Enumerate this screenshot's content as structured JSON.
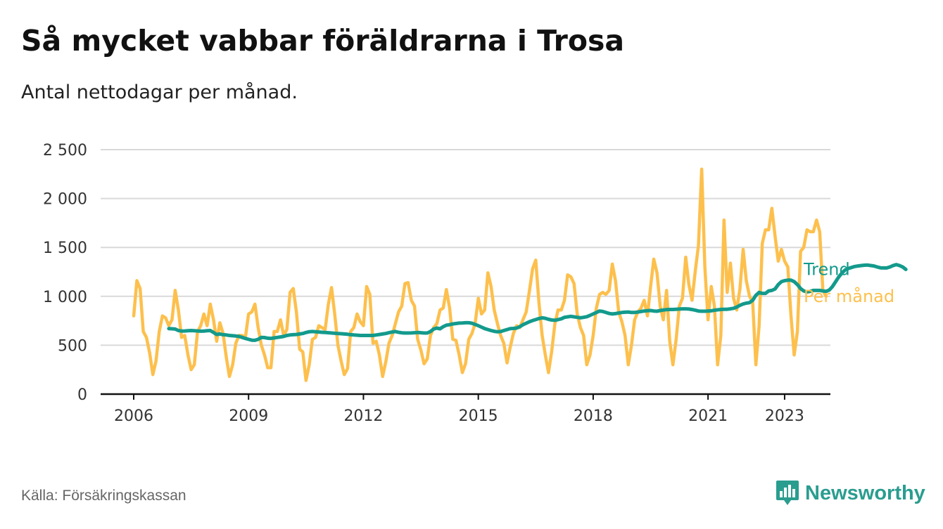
{
  "header": {
    "title": "Så mycket vabbar föräldrarna i Trosa",
    "subtitle": "Antal nettodagar per månad."
  },
  "footer": {
    "source": "Källa: Försäkringskassan",
    "brand": "Newsworthy",
    "brand_icon": "bar-chart-badge-icon"
  },
  "colors": {
    "monthly": "#fdc04d",
    "trend": "#139a8c",
    "grid": "#d9d9d9",
    "axis": "#111111",
    "brand": "#2a9d8f"
  },
  "chart_data": {
    "type": "line",
    "x_unit": "month",
    "ylim": [
      0,
      2500
    ],
    "yticks": [
      0,
      500,
      1000,
      1500,
      2000,
      2500
    ],
    "ytick_labels": [
      "0",
      "500",
      "1 000",
      "1 500",
      "2 000",
      "2 500"
    ],
    "xticks": [
      "2006-01",
      "2009-01",
      "2012-01",
      "2015-01",
      "2018-01",
      "2021-01",
      "2023-01"
    ],
    "xtick_labels": [
      "2006",
      "2009",
      "2012",
      "2015",
      "2018",
      "2021",
      "2023"
    ],
    "grid": true,
    "legend": "direct labels at line ends",
    "series": [
      {
        "name": "Per månad",
        "start": "2006-01",
        "values": [
          800,
          1160,
          1080,
          640,
          580,
          420,
          200,
          340,
          640,
          800,
          780,
          700,
          760,
          1060,
          860,
          580,
          600,
          400,
          250,
          300,
          640,
          700,
          820,
          700,
          920,
          760,
          540,
          730,
          620,
          380,
          180,
          300,
          520,
          600,
          600,
          580,
          820,
          840,
          920,
          680,
          500,
          400,
          270,
          270,
          640,
          640,
          760,
          600,
          660,
          1040,
          1080,
          840,
          460,
          430,
          140,
          300,
          560,
          580,
          700,
          680,
          660,
          920,
          1090,
          820,
          500,
          340,
          200,
          260,
          640,
          680,
          820,
          740,
          700,
          1100,
          1020,
          520,
          540,
          400,
          180,
          330,
          520,
          600,
          720,
          840,
          900,
          1130,
          1140,
          960,
          900,
          560,
          450,
          310,
          360,
          600,
          680,
          720,
          860,
          880,
          1070,
          880,
          560,
          550,
          400,
          220,
          310,
          560,
          620,
          720,
          980,
          820,
          860,
          1240,
          1100,
          860,
          720,
          600,
          520,
          320,
          480,
          620,
          700,
          680,
          760,
          840,
          1050,
          1280,
          1370,
          940,
          600,
          400,
          220,
          440,
          720,
          860,
          860,
          960,
          1220,
          1200,
          1130,
          820,
          680,
          600,
          300,
          400,
          600,
          880,
          1020,
          1040,
          1020,
          1060,
          1330,
          1160,
          840,
          740,
          600,
          300,
          500,
          760,
          840,
          880,
          960,
          800,
          1100,
          1380,
          1240,
          900,
          760,
          1060,
          540,
          300,
          560,
          900,
          980,
          1400,
          1120,
          960,
          1260,
          1520,
          2300,
          1300,
          760,
          1100,
          900,
          300,
          600,
          1780,
          1040,
          1340,
          980,
          860,
          1080,
          1480,
          1160,
          1000,
          940,
          300,
          700,
          1540,
          1680,
          1680,
          1900,
          1620,
          1360,
          1480,
          1360,
          1300,
          800,
          400,
          640,
          1460,
          1500,
          1680,
          1660,
          1660,
          1780,
          1660,
          1060,
          1000
        ]
      },
      {
        "name": "Trend",
        "start": "2006-12",
        "values": [
          670,
          668,
          665,
          650,
          645,
          646,
          648,
          650,
          648,
          646,
          644,
          645,
          648,
          650,
          630,
          610,
          615,
          608,
          605,
          600,
          597,
          594,
          590,
          580,
          570,
          560,
          552,
          550,
          560,
          580,
          578,
          572,
          570,
          575,
          580,
          585,
          590,
          600,
          605,
          608,
          610,
          615,
          620,
          630,
          638,
          640,
          638,
          635,
          632,
          630,
          628,
          625,
          622,
          620,
          618,
          615,
          612,
          608,
          605,
          603,
          600,
          600,
          600,
          600,
          600,
          605,
          610,
          615,
          620,
          628,
          635,
          640,
          632,
          627,
          625,
          625,
          626,
          628,
          630,
          628,
          625,
          625,
          640,
          665,
          675,
          668,
          690,
          705,
          710,
          718,
          722,
          726,
          728,
          730,
          730,
          725,
          713,
          700,
          685,
          670,
          660,
          650,
          642,
          637,
          640,
          650,
          660,
          670,
          672,
          675,
          690,
          710,
          725,
          740,
          752,
          762,
          773,
          780,
          775,
          765,
          758,
          755,
          762,
          770,
          785,
          790,
          795,
          790,
          785,
          780,
          785,
          792,
          805,
          820,
          835,
          850,
          845,
          835,
          825,
          820,
          823,
          830,
          835,
          838,
          840,
          835,
          835,
          840,
          845,
          850,
          853,
          855,
          850,
          848,
          855,
          860,
          864,
          866,
          866,
          868,
          870,
          872,
          872,
          870,
          865,
          858,
          850,
          848,
          848,
          850,
          852,
          858,
          862,
          866,
          868,
          868,
          872,
          878,
          890,
          908,
          922,
          930,
          935,
          960,
          1010,
          1040,
          1030,
          1030,
          1055,
          1060,
          1075,
          1120,
          1150,
          1160,
          1165,
          1165,
          1150,
          1120,
          1080,
          1055,
          1045,
          1050,
          1060,
          1060,
          1060,
          1055,
          1050,
          1065,
          1100,
          1150,
          1200,
          1240,
          1270,
          1285,
          1295,
          1305,
          1310,
          1315,
          1318,
          1320,
          1315,
          1310,
          1300,
          1292,
          1290,
          1290,
          1300,
          1315,
          1325,
          1315,
          1300,
          1275
        ]
      }
    ]
  }
}
